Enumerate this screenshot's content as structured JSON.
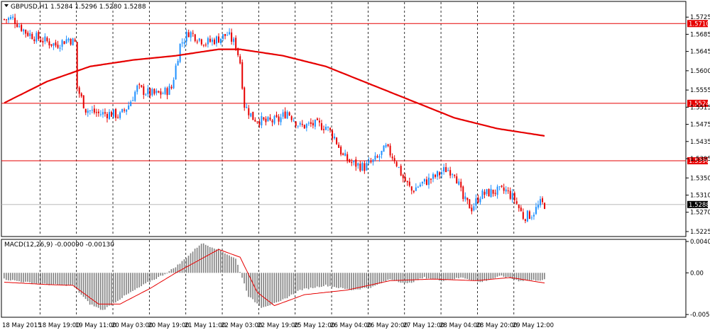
{
  "colors": {
    "background": "#ffffff",
    "bull_candle": "#1e90ff",
    "bear_candle": "#e60000",
    "moving_average": "#e60000",
    "level_line": "#e60000",
    "macd_histogram": "#808080",
    "macd_signal": "#e60000",
    "grid": "#000000",
    "current_price_badge": "#000000"
  },
  "chart_data": {
    "type": "candlestick",
    "symbol_title": "GBPUSD,H1  1.5284 1.5296 1.5280 1.5288",
    "main_y_ticks": [
      "1.5725",
      "1.5685",
      "1.5645",
      "1.5600",
      "1.5555",
      "1.5515",
      "1.5475",
      "1.5435",
      "1.5395",
      "1.5350",
      "1.5310",
      "1.5270",
      "1.5225"
    ],
    "main_ylim": [
      1.5215,
      1.576
    ],
    "x_ticks": [
      "18 May 2015",
      "18 May 19:00",
      "19 May 11:00",
      "20 May 03:00",
      "20 May 19:00",
      "21 May 11:00",
      "22 May 03:00",
      "22 May 19:00",
      "25 May 12:00",
      "26 May 04:00",
      "26 May 20:00",
      "27 May 12:00",
      "28 May 04:00",
      "28 May 20:00",
      "29 May 12:00"
    ],
    "horizontal_levels": [
      {
        "value": 1.571,
        "label": "1.5710"
      },
      {
        "value": 1.5524,
        "label": "1.5524"
      },
      {
        "value": 1.539,
        "label": "1.5390"
      }
    ],
    "current_price": {
      "value": 1.5288,
      "label": "1.5288"
    },
    "price_waypoints": [
      [
        0,
        1.572
      ],
      [
        4,
        1.5722
      ],
      [
        10,
        1.569
      ],
      [
        16,
        1.5675
      ],
      [
        20,
        1.5668
      ],
      [
        24,
        1.566
      ],
      [
        30,
        1.5675
      ],
      [
        33,
        1.5665
      ],
      [
        34,
        1.556
      ],
      [
        38,
        1.551
      ],
      [
        44,
        1.55
      ],
      [
        50,
        1.55
      ],
      [
        54,
        1.5495
      ],
      [
        58,
        1.552
      ],
      [
        62,
        1.556
      ],
      [
        66,
        1.555
      ],
      [
        70,
        1.5545
      ],
      [
        74,
        1.5548
      ],
      [
        78,
        1.556
      ],
      [
        82,
        1.566
      ],
      [
        86,
        1.569
      ],
      [
        90,
        1.5678
      ],
      [
        94,
        1.5665
      ],
      [
        100,
        1.5675
      ],
      [
        104,
        1.5685
      ],
      [
        108,
        1.566
      ],
      [
        110,
        1.562
      ],
      [
        112,
        1.552
      ],
      [
        116,
        1.549
      ],
      [
        122,
        1.548
      ],
      [
        128,
        1.5485
      ],
      [
        132,
        1.5505
      ],
      [
        138,
        1.547
      ],
      [
        144,
        1.5475
      ],
      [
        150,
        1.547
      ],
      [
        154,
        1.5445
      ],
      [
        158,
        1.54
      ],
      [
        162,
        1.5385
      ],
      [
        168,
        1.5375
      ],
      [
        174,
        1.5395
      ],
      [
        178,
        1.542
      ],
      [
        182,
        1.5395
      ],
      [
        186,
        1.535
      ],
      [
        190,
        1.532
      ],
      [
        194,
        1.5335
      ],
      [
        200,
        1.535
      ],
      [
        206,
        1.537
      ],
      [
        210,
        1.5365
      ],
      [
        214,
        1.53
      ],
      [
        218,
        1.528
      ],
      [
        222,
        1.531
      ],
      [
        228,
        1.5318
      ],
      [
        234,
        1.532
      ],
      [
        238,
        1.53
      ],
      [
        242,
        1.526
      ],
      [
        246,
        1.5265
      ],
      [
        250,
        1.529
      ],
      [
        252,
        1.5288
      ]
    ],
    "ma_waypoints": [
      [
        0,
        1.5525
      ],
      [
        20,
        1.5575
      ],
      [
        40,
        1.561
      ],
      [
        60,
        1.5625
      ],
      [
        80,
        1.5635
      ],
      [
        100,
        1.565
      ],
      [
        110,
        1.565
      ],
      [
        130,
        1.5635
      ],
      [
        150,
        1.561
      ],
      [
        170,
        1.557
      ],
      [
        190,
        1.553
      ],
      [
        210,
        1.549
      ],
      [
        230,
        1.5465
      ],
      [
        252,
        1.5448
      ]
    ],
    "macd": {
      "label": "MACD(12,26,9) -0.00090 -0.00130",
      "y_ticks": [
        "0.00402",
        "0.00",
        "-0.00534"
      ],
      "ylim": [
        -0.0056,
        0.0042
      ],
      "hist_waypoints": [
        [
          0,
          -0.0008
        ],
        [
          10,
          -0.0012
        ],
        [
          20,
          -0.0015
        ],
        [
          32,
          -0.0016
        ],
        [
          40,
          -0.004
        ],
        [
          46,
          -0.0048
        ],
        [
          56,
          -0.003
        ],
        [
          66,
          -0.0014
        ],
        [
          76,
          0.0
        ],
        [
          82,
          0.0012
        ],
        [
          92,
          0.0038
        ],
        [
          100,
          0.003
        ],
        [
          108,
          0.0018
        ],
        [
          114,
          -0.003
        ],
        [
          120,
          -0.0044
        ],
        [
          128,
          -0.0038
        ],
        [
          138,
          -0.0022
        ],
        [
          150,
          -0.0016
        ],
        [
          162,
          -0.0022
        ],
        [
          172,
          -0.0018
        ],
        [
          180,
          -0.0008
        ],
        [
          188,
          -0.0014
        ],
        [
          196,
          -0.0006
        ],
        [
          204,
          -0.001
        ],
        [
          214,
          -0.0006
        ],
        [
          222,
          -0.0012
        ],
        [
          232,
          -0.0004
        ],
        [
          240,
          -0.001
        ],
        [
          252,
          -0.0009
        ]
      ],
      "signal_waypoints": [
        [
          0,
          -0.0012
        ],
        [
          20,
          -0.0015
        ],
        [
          32,
          -0.0016
        ],
        [
          44,
          -0.004
        ],
        [
          54,
          -0.004
        ],
        [
          68,
          -0.002
        ],
        [
          80,
          0.0
        ],
        [
          90,
          0.0015
        ],
        [
          100,
          0.003
        ],
        [
          110,
          0.002
        ],
        [
          118,
          -0.0025
        ],
        [
          126,
          -0.0042
        ],
        [
          140,
          -0.0028
        ],
        [
          160,
          -0.0022
        ],
        [
          180,
          -0.001
        ],
        [
          200,
          -0.0008
        ],
        [
          220,
          -0.001
        ],
        [
          236,
          -0.0006
        ],
        [
          252,
          -0.0013
        ]
      ]
    }
  }
}
